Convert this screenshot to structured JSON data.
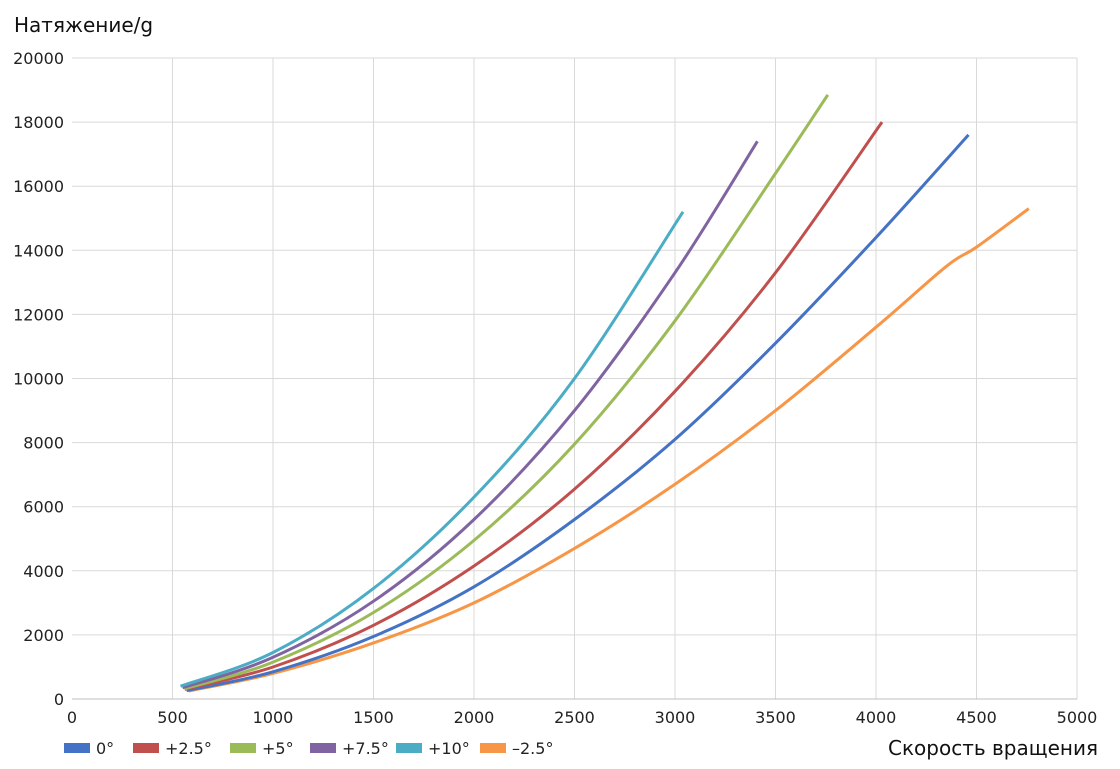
{
  "chart_data": {
    "type": "line",
    "title": "",
    "ylabel": "Натяжение/g",
    "xlabel": "Скорость вращения",
    "xlim": [
      0,
      5000
    ],
    "ylim": [
      0,
      20000
    ],
    "xticks": [
      0,
      500,
      1000,
      1500,
      2000,
      2500,
      3000,
      3500,
      4000,
      4500,
      5000
    ],
    "yticks": [
      0,
      2000,
      4000,
      6000,
      8000,
      10000,
      12000,
      14000,
      16000,
      18000,
      20000
    ],
    "grid": true,
    "legend_position": "bottom-left",
    "series": [
      {
        "name": "0°",
        "color": "#4472C4",
        "x": [
          570,
          1000,
          1500,
          2000,
          2500,
          3000,
          3500,
          4000,
          4460
        ],
        "y": [
          260,
          850,
          1950,
          3500,
          5600,
          8100,
          11100,
          14400,
          17600
        ]
      },
      {
        "name": "+2.5°",
        "color": "#C0504D",
        "x": [
          560,
          1000,
          1500,
          2000,
          2500,
          3000,
          3500,
          4030
        ],
        "y": [
          300,
          1000,
          2300,
          4150,
          6550,
          9600,
          13300,
          18000
        ]
      },
      {
        "name": "+5°",
        "color": "#9BBB59",
        "x": [
          560,
          1000,
          1500,
          2000,
          2500,
          3000,
          3500,
          3760
        ],
        "y": [
          320,
          1150,
          2700,
          4950,
          7950,
          11800,
          16400,
          18850
        ]
      },
      {
        "name": "+7.5°",
        "color": "#8064A2",
        "x": [
          550,
          1000,
          1500,
          2000,
          2500,
          3000,
          3410
        ],
        "y": [
          350,
          1300,
          3050,
          5600,
          9000,
          13300,
          17400
        ]
      },
      {
        "name": "+10°",
        "color": "#4BACC6",
        "x": [
          540,
          1000,
          1500,
          2000,
          2500,
          3040
        ],
        "y": [
          400,
          1450,
          3450,
          6300,
          10000,
          15200
        ]
      },
      {
        "name": "–2.5°",
        "color": "#F79646",
        "x": [
          580,
          1000,
          1500,
          2000,
          2500,
          3000,
          3500,
          4000,
          4350,
          4500,
          4760
        ],
        "y": [
          250,
          800,
          1750,
          3000,
          4700,
          6700,
          9000,
          11600,
          13500,
          14100,
          15300
        ]
      }
    ]
  }
}
